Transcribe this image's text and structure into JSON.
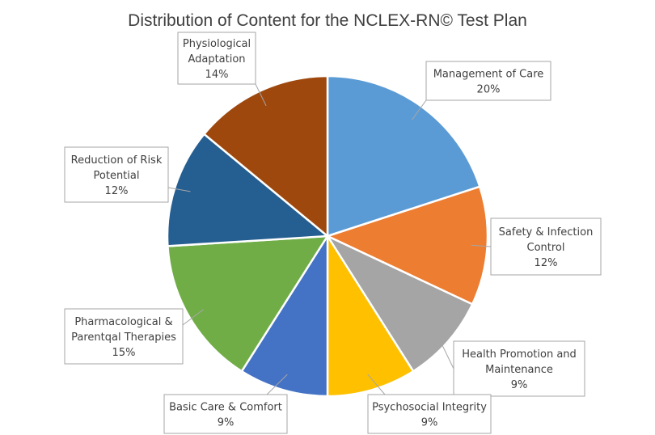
{
  "chart_data": {
    "type": "pie",
    "title": "Distribution of Content for the NCLEX-RN© Test Plan",
    "slices": [
      {
        "label_lines": [
          "Management of Care"
        ],
        "value": 20,
        "value_label": "20%",
        "color": "#5B9BD5"
      },
      {
        "label_lines": [
          "Safety & Infection",
          "Control"
        ],
        "value": 12,
        "value_label": "12%",
        "color": "#ED7D31"
      },
      {
        "label_lines": [
          "Health Promotion and",
          "Maintenance"
        ],
        "value": 9,
        "value_label": "9%",
        "color": "#A5A5A5"
      },
      {
        "label_lines": [
          "Psychosocial Integrity"
        ],
        "value": 9,
        "value_label": "9%",
        "color": "#FFC000"
      },
      {
        "label_lines": [
          "Basic Care & Comfort"
        ],
        "value": 9,
        "value_label": "9%",
        "color": "#4472C4"
      },
      {
        "label_lines": [
          "Pharmacological &",
          "Parentqal Therapies"
        ],
        "value": 15,
        "value_label": "15%",
        "color": "#70AD47"
      },
      {
        "label_lines": [
          "Reduction of Risk",
          "Potential"
        ],
        "value": 12,
        "value_label": "12%",
        "color": "#255E91"
      },
      {
        "label_lines": [
          "Physiological",
          "Adaptation"
        ],
        "value": 14,
        "value_label": "14%",
        "color": "#9E480E"
      }
    ],
    "start_angle_deg": 0,
    "direction": "clockwise",
    "data_labels": "callout"
  }
}
